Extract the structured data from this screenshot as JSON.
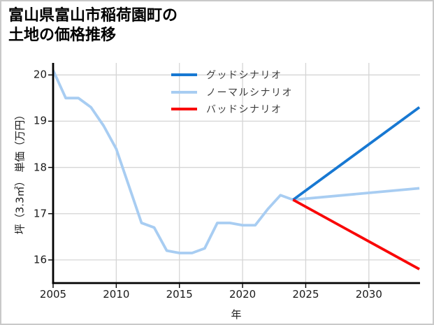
{
  "title": {
    "line1": "富山県富山市稲荷園町の",
    "line2": "土地の価格推移"
  },
  "chart_data": {
    "type": "line",
    "title": "富山県富山市稲荷園町の土地の価格推移",
    "xlabel": "年",
    "ylabel": "坪（3.3㎡） 単価（万円）",
    "x_ticks": [
      2005,
      2010,
      2015,
      2020,
      2025,
      2030
    ],
    "y_ticks": [
      16,
      17,
      18,
      19,
      20
    ],
    "xlim": [
      2005,
      2034.05
    ],
    "ylim": [
      15.5,
      20.26
    ],
    "grid": true,
    "grid_color": "#d5d5d5",
    "legend_position": "upper center, inside plot, no frame",
    "series": [
      {
        "key": "good",
        "name": "グッドシナリオ",
        "color": "#1778d2",
        "x": [
          2024,
          2034
        ],
        "y": [
          17.3,
          19.3
        ]
      },
      {
        "key": "normal",
        "name": "ノーマルシナリオ",
        "color": "#a8cdf2",
        "x": [
          2005,
          2006,
          2007,
          2008,
          2009,
          2010,
          2011,
          2012,
          2013,
          2014,
          2015,
          2016,
          2017,
          2018,
          2019,
          2020,
          2021,
          2022,
          2023,
          2024,
          2034
        ],
        "y": [
          20.1,
          19.5,
          19.5,
          19.3,
          18.9,
          18.4,
          17.6,
          16.8,
          16.7,
          16.2,
          16.15,
          16.15,
          16.25,
          16.8,
          16.8,
          16.75,
          16.75,
          17.1,
          17.4,
          17.3,
          17.55
        ]
      },
      {
        "key": "bad",
        "name": "バッドシナリオ",
        "color": "#f90606",
        "x": [
          2024,
          2034
        ],
        "y": [
          17.3,
          15.8
        ]
      }
    ]
  }
}
